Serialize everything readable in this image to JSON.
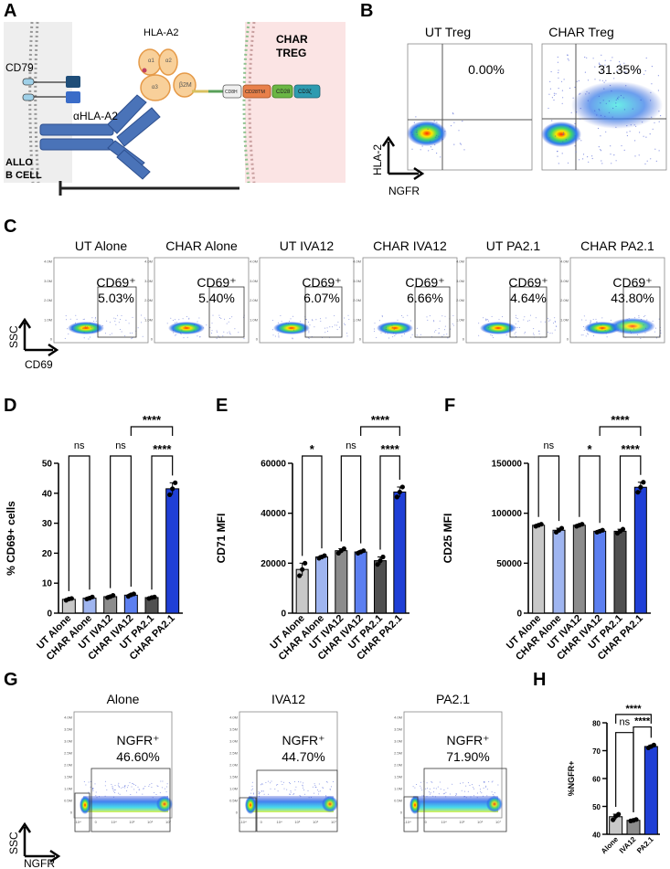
{
  "panel_a": {
    "letter": "A",
    "hla_a2": "HLA-A2",
    "b2m": "β2M",
    "a1": "α1",
    "a2": "α2",
    "a3": "α3",
    "cd79": "CD79",
    "ahla": "αHLA-A2",
    "char_line1": "CHAR",
    "char_line2": "TREG",
    "allo_line1": "ALLO",
    "allo_line2": "B CELL",
    "domains": [
      "CD8H",
      "CD28TM",
      "CD28",
      "CD3ζ"
    ],
    "colors": {
      "allo_bg": "#eeeeee",
      "char_bg": "#fbe4e4",
      "receptor": "#4a73b8",
      "hla": "#f2b26a",
      "cd28tm": "#e8804a",
      "cd28": "#6bb644",
      "cd3z": "#2e9bb0"
    }
  },
  "panel_b": {
    "letter": "B",
    "titles": [
      "UT Treg",
      "CHAR Treg"
    ],
    "percents": [
      "0.00%",
      "31.35%"
    ],
    "y_axis": "HLA-2",
    "x_axis": "NGFR"
  },
  "panel_c": {
    "letter": "C",
    "titles": [
      "UT Alone",
      "CHAR Alone",
      "UT IVA12",
      "CHAR IVA12",
      "UT PA2.1",
      "CHAR PA2.1"
    ],
    "gate_label": "CD69⁺",
    "percents": [
      "5.03%",
      "5.40%",
      "6.07%",
      "6.66%",
      "4.64%",
      "43.80%"
    ],
    "y_axis": "SSC",
    "x_axis": "CD69",
    "y_ticks": [
      "4.0M",
      "3.0M",
      "2.0M",
      "1.0M",
      "0"
    ]
  },
  "panel_g": {
    "letter": "G",
    "titles": [
      "Alone",
      "IVA12",
      "PA2.1"
    ],
    "gate_label": "NGFR⁺",
    "percents": [
      "46.60%",
      "44.70%",
      "71.90%"
    ],
    "y_axis": "SSC",
    "x_axis": "NGFR",
    "y_ticks": [
      "4.0M",
      "3.5M",
      "3.0M",
      "2.5M",
      "2.0M",
      "1.5M",
      "1.0M",
      "0.5M",
      "0"
    ],
    "x_ticks": [
      "-10⁴",
      "0",
      "10⁴",
      "10⁵",
      "10⁶",
      "10⁷"
    ]
  },
  "chart_data": [
    {
      "panel": "D",
      "type": "bar",
      "categories": [
        "UT Alone",
        "CHAR Alone",
        "UT IVA12",
        "CHAR IVA12",
        "UT PA2.1",
        "CHAR PA2.1"
      ],
      "values": [
        4.6,
        5.0,
        5.5,
        6.0,
        5.2,
        41.5
      ],
      "points": [
        [
          4.3,
          4.7,
          4.9
        ],
        [
          4.7,
          5.0,
          5.4
        ],
        [
          5.2,
          5.5,
          5.9
        ],
        [
          5.6,
          6.1,
          6.4
        ],
        [
          4.9,
          5.2,
          5.4
        ],
        [
          39.5,
          41.5,
          43.5
        ]
      ],
      "ylabel": "% CD69+ cells",
      "ylim": [
        0,
        50
      ],
      "yticks": [
        0,
        10,
        20,
        30,
        40,
        50
      ],
      "tick_labels": [
        "0",
        "10",
        "20",
        "30",
        "40",
        "50"
      ],
      "colors": [
        "#c8c8c8",
        "#9fb5f0",
        "#8c8c8c",
        "#5c7ff0",
        "#505050",
        "#1f3fd6"
      ],
      "significance": [
        {
          "from": 0,
          "to": 1,
          "label": "ns",
          "level": 0
        },
        {
          "from": 2,
          "to": 3,
          "label": "ns",
          "level": 0
        },
        {
          "from": 4,
          "to": 5,
          "label": "****",
          "level": 0
        },
        {
          "from": 3,
          "to": 5,
          "label": "****",
          "level": 1
        }
      ]
    },
    {
      "panel": "E",
      "type": "bar",
      "categories": [
        "UT Alone",
        "CHAR Alone",
        "UT IVA12",
        "CHAR IVA12",
        "UT PA2.1",
        "CHAR PA2.1"
      ],
      "values": [
        17500,
        22500,
        25000,
        24500,
        21000,
        48500
      ],
      "points": [
        [
          15000,
          17500,
          20000
        ],
        [
          22000,
          22500,
          23000
        ],
        [
          24000,
          25000,
          25800
        ],
        [
          24000,
          24500,
          25000
        ],
        [
          19500,
          21000,
          22500
        ],
        [
          46500,
          48500,
          50500
        ]
      ],
      "ylabel": "CD71 MFI",
      "ylim": [
        0,
        60000
      ],
      "yticks": [
        0,
        20000,
        40000,
        60000
      ],
      "tick_labels": [
        "0",
        "20000",
        "40000",
        "60000"
      ],
      "colors": [
        "#c8c8c8",
        "#9fb5f0",
        "#8c8c8c",
        "#5c7ff0",
        "#505050",
        "#1f3fd6"
      ],
      "significance": [
        {
          "from": 0,
          "to": 1,
          "label": "*",
          "level": 0
        },
        {
          "from": 2,
          "to": 3,
          "label": "ns",
          "level": 0
        },
        {
          "from": 4,
          "to": 5,
          "label": "****",
          "level": 0
        },
        {
          "from": 3,
          "to": 5,
          "label": "****",
          "level": 1
        }
      ]
    },
    {
      "panel": "F",
      "type": "bar",
      "categories": [
        "UT Alone",
        "CHAR Alone",
        "UT IVA12",
        "CHAR IVA12",
        "UT PA2.1",
        "CHAR PA2.1"
      ],
      "values": [
        88000,
        83000,
        88000,
        82000,
        82000,
        126000
      ],
      "points": [
        [
          87000,
          88000,
          89000
        ],
        [
          81000,
          83000,
          85000
        ],
        [
          87000,
          88000,
          89000
        ],
        [
          81000,
          82000,
          83000
        ],
        [
          80000,
          82000,
          84000
        ],
        [
          121000,
          126000,
          131000
        ]
      ],
      "ylabel": "CD25 MFI",
      "ylim": [
        0,
        150000
      ],
      "yticks": [
        0,
        50000,
        100000,
        150000
      ],
      "tick_labels": [
        "0",
        "50000",
        "100000",
        "150000"
      ],
      "colors": [
        "#c8c8c8",
        "#9fb5f0",
        "#8c8c8c",
        "#5c7ff0",
        "#505050",
        "#1f3fd6"
      ],
      "significance": [
        {
          "from": 0,
          "to": 1,
          "label": "ns",
          "level": 0
        },
        {
          "from": 2,
          "to": 3,
          "label": "*",
          "level": 0
        },
        {
          "from": 4,
          "to": 5,
          "label": "****",
          "level": 0
        },
        {
          "from": 3,
          "to": 5,
          "label": "****",
          "level": 1
        }
      ]
    },
    {
      "panel": "H",
      "type": "bar",
      "categories": [
        "Alone",
        "IVA12",
        "PA2.1"
      ],
      "values": [
        46.3,
        45.0,
        71.5
      ],
      "points": [
        [
          45.2,
          46.5,
          47.2
        ],
        [
          44.8,
          45.0,
          45.3
        ],
        [
          71.0,
          71.5,
          72.0
        ]
      ],
      "ylabel": "%NGFR+",
      "ylim": [
        40,
        80
      ],
      "yticks": [
        40,
        50,
        60,
        70,
        80
      ],
      "tick_labels": [
        "40",
        "50",
        "60",
        "70",
        "80"
      ],
      "colors": [
        "#c8c8c8",
        "#8c8c8c",
        "#1f3fd6"
      ],
      "significance": [
        {
          "from": 0,
          "to": 1,
          "label": "ns",
          "level": 0
        },
        {
          "from": 1,
          "to": 2,
          "label": "****",
          "level": 0
        },
        {
          "from": 0,
          "to": 2,
          "label": "****",
          "level": 1
        }
      ]
    }
  ]
}
